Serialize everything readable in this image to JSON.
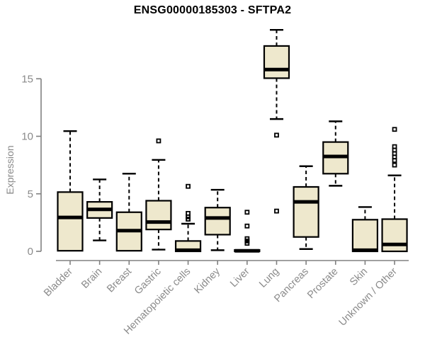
{
  "header": {
    "title": "ENSG00000185303 - SFTPA2"
  },
  "chart_data": {
    "type": "boxplot",
    "title": "ENSG00000185303 - SFTPA2",
    "xlabel": "",
    "ylabel": "Expression",
    "ylim": [
      0,
      19.5
    ],
    "yticks": [
      0,
      5,
      10,
      15
    ],
    "grid": false,
    "legend": "none",
    "categories": [
      "Bladder",
      "Brain",
      "Breast",
      "Gastric",
      "Hematopoietic cells",
      "Kidney",
      "Liver",
      "Lung",
      "Pancreas",
      "Prostate",
      "Skin",
      "Unknown / Other"
    ],
    "series": [
      {
        "name": "Bladder",
        "low": 0,
        "q1": 0.05,
        "median": 2.95,
        "q3": 5.15,
        "high": 10.45,
        "outliers": []
      },
      {
        "name": "Brain",
        "low": 0.95,
        "q1": 2.9,
        "median": 3.65,
        "q3": 4.3,
        "high": 6.25,
        "outliers": []
      },
      {
        "name": "Breast",
        "low": 0,
        "q1": 0.05,
        "median": 1.8,
        "q3": 3.4,
        "high": 6.75,
        "outliers": []
      },
      {
        "name": "Gastric",
        "low": 0.15,
        "q1": 1.9,
        "median": 2.55,
        "q3": 4.4,
        "high": 7.95,
        "outliers": [
          9.6
        ]
      },
      {
        "name": "Hematopoietic cells",
        "low": 0,
        "q1": 0,
        "median": 0.1,
        "q3": 0.9,
        "high": 2.4,
        "outliers": [
          2.8,
          3.0,
          3.3,
          5.65
        ]
      },
      {
        "name": "Kidney",
        "low": 0.1,
        "q1": 1.45,
        "median": 2.9,
        "q3": 3.8,
        "high": 5.35,
        "outliers": []
      },
      {
        "name": "Liver",
        "low": 0,
        "q1": 0,
        "median": 0.05,
        "q3": 0.12,
        "high": 0.12,
        "outliers": [
          0.7,
          0.9,
          1.1,
          2.2,
          3.4
        ]
      },
      {
        "name": "Lung",
        "low": 11.5,
        "q1": 15.05,
        "median": 15.8,
        "q3": 17.85,
        "high": 19.25,
        "outliers": [
          10.1,
          3.5
        ]
      },
      {
        "name": "Pancreas",
        "low": 0.2,
        "q1": 1.25,
        "median": 4.3,
        "q3": 5.6,
        "high": 7.4,
        "outliers": []
      },
      {
        "name": "Prostate",
        "low": 5.7,
        "q1": 6.75,
        "median": 8.25,
        "q3": 9.5,
        "high": 11.3,
        "outliers": []
      },
      {
        "name": "Skin",
        "low": 0,
        "q1": 0,
        "median": 0.1,
        "q3": 2.75,
        "high": 3.85,
        "outliers": []
      },
      {
        "name": "Unknown / Other",
        "low": 0,
        "q1": 0,
        "median": 0.6,
        "q3": 2.8,
        "high": 6.6,
        "outliers": [
          7.5,
          7.9,
          8.2,
          8.5,
          8.8,
          9.1,
          10.6
        ]
      }
    ],
    "colors": {
      "box_fill": "#EEE8CD",
      "box_border": "#000000",
      "median": "#000000",
      "whisker": "#000000",
      "outlier": "#000000",
      "axis": "#808080",
      "tick_label": "#8a8a8a",
      "title": "#000000"
    }
  }
}
